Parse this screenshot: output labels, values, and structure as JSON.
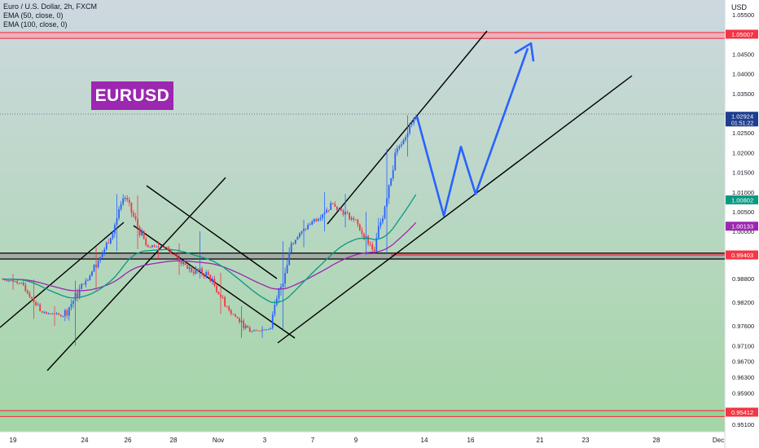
{
  "legend": {
    "symbol": "Euro / U.S. Dollar, 2h, FXCM",
    "ema50": "EMA (50, close, 0)",
    "ema100": "EMA (100, close, 0)"
  },
  "badge": "EURUSD",
  "price_axis": {
    "currency": "USD",
    "ticks": [
      "1.05500",
      "1.04500",
      "1.04000",
      "1.03500",
      "1.02500",
      "1.02000",
      "1.01500",
      "1.01000",
      "1.00500",
      "1.00000",
      "0.98800",
      "0.98200",
      "0.97600",
      "0.97100",
      "0.96700",
      "0.96300",
      "0.95900",
      "0.95100"
    ],
    "labels": [
      {
        "text": "1.05007",
        "price": 1.05007,
        "color": "#f23645"
      },
      {
        "text": "1.02924",
        "sub": "01:51:22",
        "price": 1.02924,
        "color": "#1e3d8f"
      },
      {
        "text": "1.00802",
        "price": 1.00802,
        "color": "#089981"
      },
      {
        "text": "1.00133",
        "price": 1.00133,
        "color": "#9c27b0"
      },
      {
        "text": "0.99403",
        "price": 0.99403,
        "color": "#f23645"
      },
      {
        "text": "0.95412",
        "price": 0.95412,
        "color": "#f23645"
      }
    ]
  },
  "time_axis": [
    "19",
    "24",
    "26",
    "28",
    "Nov",
    "3",
    "7",
    "9",
    "14",
    "16",
    "21",
    "23",
    "28",
    "Dec"
  ],
  "colors": {
    "up": "#2962ff",
    "down": "#f23645",
    "ema50": "#089981",
    "ema100": "#9c27b0",
    "zone_top": "#f7a3ae",
    "zone_mid": "#9e9e9e",
    "projection": "#2962ff",
    "bg_top": "#cdd8df",
    "bg_bottom": "#a4d6a6"
  },
  "chart_data": {
    "type": "candlestick",
    "symbol": "EURUSD",
    "timeframe": "2h",
    "resistance_zone": [
      1.049,
      1.0505
    ],
    "support_zone": [
      0.993,
      0.9945
    ],
    "bottom_zone": [
      0.953,
      0.9545
    ],
    "last_price": 1.02924,
    "ema50_last": 1.00802,
    "ema100_last": 1.00133,
    "candles": [
      {
        "x": "19",
        "o": 0.988,
        "h": 0.9892,
        "l": 0.9852,
        "c": 0.987
      },
      {
        "x": "20",
        "o": 0.987,
        "h": 0.9878,
        "l": 0.9778,
        "c": 0.9795
      },
      {
        "x": "21",
        "o": 0.9795,
        "h": 0.981,
        "l": 0.976,
        "c": 0.9785
      },
      {
        "x": "24",
        "o": 0.9785,
        "h": 0.9875,
        "l": 0.971,
        "c": 0.9865
      },
      {
        "x": "25",
        "o": 0.9865,
        "h": 0.996,
        "l": 0.985,
        "c": 0.9955
      },
      {
        "x": "26",
        "o": 0.9955,
        "h": 1.0095,
        "l": 0.995,
        "c": 1.0085
      },
      {
        "x": "27",
        "o": 1.0085,
        "h": 1.0092,
        "l": 0.9955,
        "c": 0.9965
      },
      {
        "x": "28",
        "o": 0.9965,
        "h": 0.9975,
        "l": 0.993,
        "c": 0.996
      },
      {
        "x": "31",
        "o": 0.996,
        "h": 0.997,
        "l": 0.989,
        "c": 0.9905
      },
      {
        "x": "Nov",
        "o": 0.9905,
        "h": 1.0,
        "l": 0.988,
        "c": 0.989
      },
      {
        "x": "2",
        "o": 0.989,
        "h": 0.9895,
        "l": 0.979,
        "c": 0.98
      },
      {
        "x": "3",
        "o": 0.98,
        "h": 0.981,
        "l": 0.973,
        "c": 0.9745
      },
      {
        "x": "4",
        "o": 0.9745,
        "h": 0.976,
        "l": 0.973,
        "c": 0.9755
      },
      {
        "x": "7",
        "o": 0.9755,
        "h": 0.9975,
        "l": 0.975,
        "c": 0.997
      },
      {
        "x": "8",
        "o": 0.997,
        "h": 1.003,
        "l": 0.996,
        "c": 1.0025
      },
      {
        "x": "9",
        "o": 1.0025,
        "h": 1.01,
        "l": 1.0,
        "c": 1.007
      },
      {
        "x": "10",
        "o": 1.007,
        "h": 1.0095,
        "l": 1.001,
        "c": 1.003
      },
      {
        "x": "11",
        "o": 1.003,
        "h": 1.005,
        "l": 0.994,
        "c": 0.995
      },
      {
        "x": "11b",
        "o": 0.995,
        "h": 1.021,
        "l": 0.9945,
        "c": 1.02
      },
      {
        "x": "14",
        "o": 1.02,
        "h": 1.0295,
        "l": 1.019,
        "c": 1.02924
      }
    ],
    "projection": [
      {
        "x": "14",
        "y": 1.0292
      },
      {
        "x": "15",
        "y": 1.004
      },
      {
        "x": "16",
        "y": 1.0215
      },
      {
        "x": "17",
        "y": 1.0095
      },
      {
        "x": "21",
        "y": 1.0465
      }
    ]
  }
}
